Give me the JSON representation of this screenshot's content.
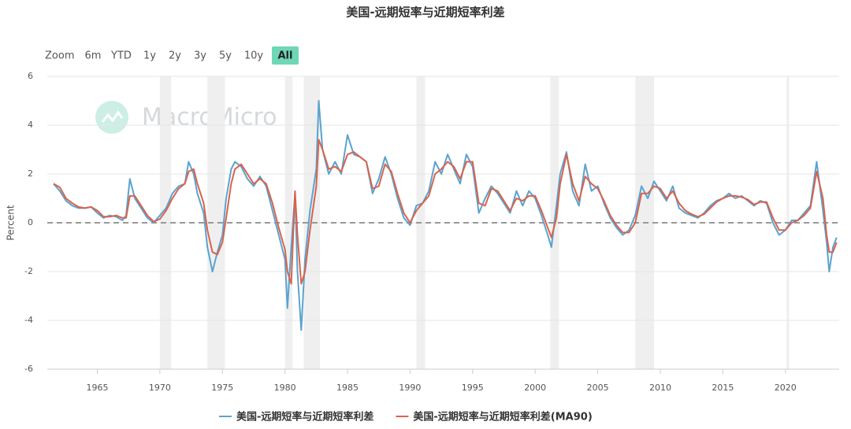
{
  "chart_data": {
    "type": "line",
    "title": "美国-远期短率与近期短率利差",
    "watermark": "MacroMicro",
    "y_label": "Percent",
    "range_selector": {
      "label": "Zoom",
      "buttons": [
        "6m",
        "YTD",
        "1y",
        "2y",
        "3y",
        "5y",
        "10y",
        "All"
      ],
      "selected": 7
    },
    "xlim": [
      1961,
      2024.3
    ],
    "xticks": [
      1965,
      1970,
      1975,
      1980,
      1985,
      1990,
      1995,
      2000,
      2005,
      2010,
      2015,
      2020
    ],
    "ylim": [
      -6,
      6
    ],
    "yticks": [
      -6,
      -4,
      -2,
      0,
      2,
      4,
      6
    ],
    "grid": true,
    "zero_line": 0,
    "legend": "bottom",
    "recession_bands": [
      [
        1970.0,
        1970.9
      ],
      [
        1973.8,
        1975.2
      ],
      [
        1980.0,
        1980.6
      ],
      [
        1981.5,
        1982.8
      ],
      [
        1990.5,
        1991.2
      ],
      [
        2001.2,
        2001.9
      ],
      [
        2008.0,
        2009.5
      ],
      [
        2020.1,
        2020.3
      ]
    ],
    "x": [
      1961.5,
      1962,
      1962.5,
      1963,
      1963.5,
      1964,
      1964.5,
      1965,
      1965.5,
      1966,
      1966.5,
      1967,
      1967.3,
      1967.6,
      1968,
      1968.5,
      1969,
      1969.5,
      1970,
      1970.5,
      1971,
      1971.5,
      1972,
      1972.3,
      1972.7,
      1973,
      1973.5,
      1973.8,
      1974.2,
      1974.6,
      1975,
      1975.3,
      1975.7,
      1976,
      1976.5,
      1977,
      1977.5,
      1978,
      1978.5,
      1979,
      1979.5,
      1980,
      1980.2,
      1980.5,
      1980.8,
      1981,
      1981.3,
      1981.6,
      1982,
      1982.5,
      1982.7,
      1983,
      1983.5,
      1984,
      1984.5,
      1985,
      1985.5,
      1986,
      1986.5,
      1987,
      1987.5,
      1988,
      1988.5,
      1989,
      1989.5,
      1990,
      1990.5,
      1991,
      1991.5,
      1992,
      1992.5,
      1993,
      1993.5,
      1994,
      1994.5,
      1995,
      1995.5,
      1996,
      1996.5,
      1997,
      1997.5,
      1998,
      1998.5,
      1999,
      1999.5,
      2000,
      2000.5,
      2001,
      2001.3,
      2001.7,
      2002,
      2002.5,
      2003,
      2003.5,
      2004,
      2004.5,
      2005,
      2005.5,
      2006,
      2006.5,
      2007,
      2007.5,
      2008,
      2008.5,
      2009,
      2009.5,
      2010,
      2010.5,
      2011,
      2011.5,
      2012,
      2012.5,
      2013,
      2013.5,
      2014,
      2014.5,
      2015,
      2015.5,
      2016,
      2016.5,
      2017,
      2017.5,
      2018,
      2018.5,
      2019,
      2019.5,
      2020,
      2020.5,
      2021,
      2021.5,
      2022,
      2022.5,
      2023,
      2023.3,
      2023.5,
      2023.8,
      2024.1
    ],
    "series": [
      {
        "name": "美国-远期短率与近期短率利差",
        "color": "#5ba3cf",
        "width": 2,
        "values": [
          1.6,
          1.3,
          0.9,
          0.7,
          0.6,
          0.6,
          0.65,
          0.4,
          0.2,
          0.3,
          0.25,
          0.1,
          0.3,
          1.8,
          1.0,
          0.6,
          0.2,
          0.0,
          0.3,
          0.6,
          1.2,
          1.5,
          1.6,
          2.5,
          2.0,
          1.2,
          0.4,
          -1.0,
          -2.0,
          -1.2,
          -0.5,
          1.0,
          2.2,
          2.5,
          2.3,
          1.8,
          1.5,
          1.9,
          1.5,
          0.5,
          -0.5,
          -1.5,
          -3.5,
          -1.0,
          1.2,
          -2.0,
          -4.4,
          -1.5,
          0.5,
          2.2,
          5.0,
          3.0,
          2.0,
          2.5,
          2.0,
          3.6,
          2.8,
          2.7,
          2.5,
          1.2,
          1.8,
          2.7,
          2.0,
          1.0,
          0.2,
          -0.1,
          0.7,
          0.8,
          1.3,
          2.5,
          2.0,
          2.8,
          2.2,
          1.6,
          2.8,
          2.3,
          0.4,
          1.0,
          1.5,
          1.2,
          0.8,
          0.4,
          1.3,
          0.7,
          1.3,
          1.0,
          0.3,
          -0.5,
          -1.0,
          0.7,
          2.0,
          2.9,
          1.3,
          0.7,
          2.4,
          1.3,
          1.5,
          0.8,
          0.2,
          -0.2,
          -0.5,
          -0.3,
          0.3,
          1.5,
          1.0,
          1.7,
          1.3,
          0.9,
          1.5,
          0.6,
          0.4,
          0.3,
          0.2,
          0.4,
          0.7,
          0.9,
          1.0,
          1.2,
          1.0,
          1.1,
          0.9,
          0.7,
          0.9,
          0.8,
          0.0,
          -0.5,
          -0.3,
          0.1,
          0.1,
          0.4,
          0.7,
          2.5,
          0.5,
          -0.8,
          -2.0,
          -1.0,
          -0.6
        ]
      },
      {
        "name": "美国-远期短率与近期短率利差(MA90)",
        "color": "#d9634c",
        "width": 2,
        "values": [
          1.6,
          1.45,
          1.0,
          0.8,
          0.65,
          0.6,
          0.65,
          0.5,
          0.25,
          0.25,
          0.3,
          0.2,
          0.2,
          1.1,
          1.1,
          0.7,
          0.3,
          0.05,
          0.15,
          0.5,
          1.0,
          1.4,
          1.6,
          2.1,
          2.2,
          1.6,
          0.8,
          -0.3,
          -1.2,
          -1.3,
          -0.8,
          0.2,
          1.6,
          2.2,
          2.4,
          2.0,
          1.6,
          1.8,
          1.6,
          0.8,
          -0.2,
          -1.1,
          -2.0,
          -2.5,
          1.3,
          -0.5,
          -2.5,
          -2.0,
          -0.3,
          1.5,
          3.4,
          3.0,
          2.2,
          2.3,
          2.1,
          2.8,
          2.9,
          2.7,
          2.5,
          1.4,
          1.5,
          2.4,
          2.1,
          1.2,
          0.4,
          0.0,
          0.5,
          0.8,
          1.1,
          2.0,
          2.2,
          2.5,
          2.3,
          1.8,
          2.5,
          2.5,
          0.8,
          0.7,
          1.4,
          1.3,
          0.9,
          0.5,
          1.0,
          0.9,
          1.1,
          1.1,
          0.5,
          -0.2,
          -0.6,
          0.2,
          1.6,
          2.8,
          1.6,
          0.9,
          1.9,
          1.6,
          1.4,
          0.9,
          0.3,
          -0.1,
          -0.4,
          -0.4,
          0.0,
          1.2,
          1.2,
          1.5,
          1.4,
          1.0,
          1.3,
          0.8,
          0.5,
          0.35,
          0.25,
          0.35,
          0.6,
          0.85,
          1.0,
          1.1,
          1.1,
          1.05,
          0.95,
          0.75,
          0.85,
          0.85,
          0.2,
          -0.3,
          -0.3,
          0.0,
          0.1,
          0.3,
          0.6,
          2.1,
          1.0,
          -0.5,
          -1.2,
          -1.2,
          -0.8
        ]
      }
    ]
  }
}
